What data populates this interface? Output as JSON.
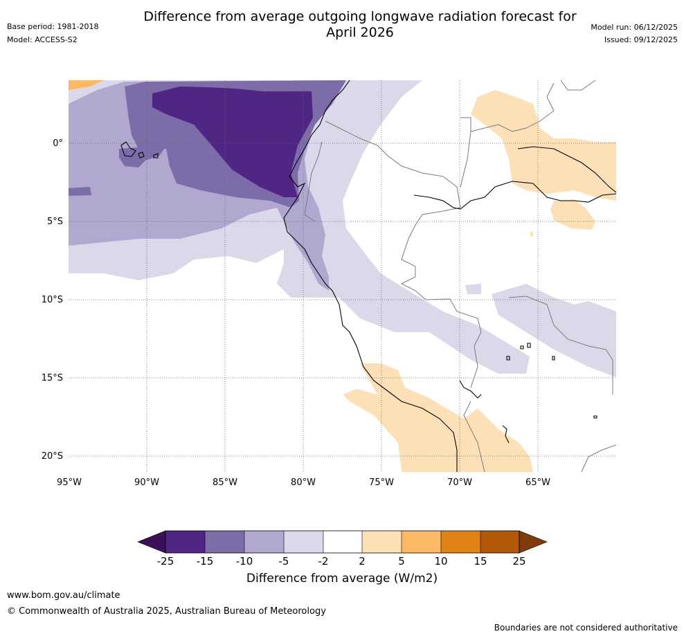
{
  "header": {
    "title_line1": "Difference from average outgoing longwave radiation forecast for",
    "title_line2": "April 2026",
    "base_period": "Base period: 1981-2018",
    "model": "Model: ACCESS-S2",
    "model_run": "Model run: 06/12/2025",
    "issued": "Issued: 09/12/2025"
  },
  "map": {
    "lon_labels": [
      "95°W",
      "90°W",
      "85°W",
      "80°W",
      "75°W",
      "70°W",
      "65°W"
    ],
    "lat_labels": [
      "0°",
      "5°S",
      "10°S",
      "15°S",
      "20°S"
    ],
    "colors": {
      "n25": "#3b1059",
      "n15": "#4f2683",
      "n10": "#7c6ca7",
      "n5": "#b0a8cf",
      "n2": "#d9d9ea",
      "zero": "#ffffff",
      "p2": "#fde0b6",
      "p5": "#fdb863",
      "p10": "#e08214",
      "p15": "#b35806",
      "p25": "#7f3b08"
    }
  },
  "colorbar": {
    "ticks": [
      "-25",
      "-15",
      "-10",
      "-5",
      "-2",
      "2",
      "5",
      "10",
      "15",
      "25"
    ],
    "label": "Difference from average (W/m2)"
  },
  "footer": {
    "site": "www.bom.gov.au/climate",
    "copyright": "© Commonwealth of Australia 2025, Australian Bureau of Meteorology",
    "disclaimer": "Boundaries are not considered authoritative"
  }
}
